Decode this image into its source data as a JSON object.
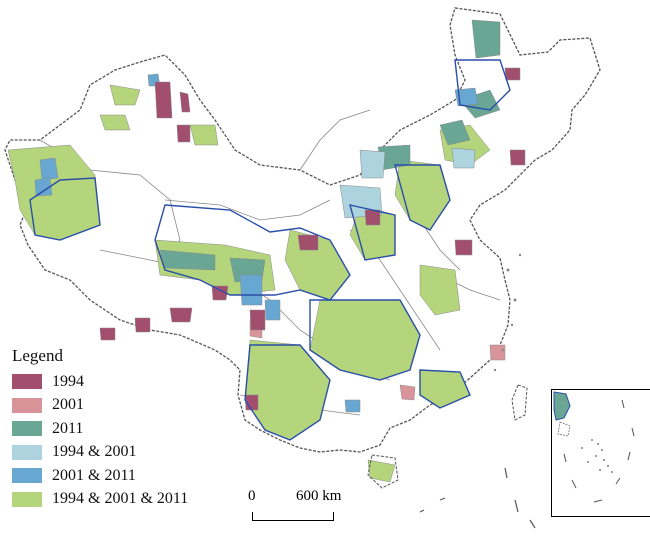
{
  "legend": {
    "title": "Legend",
    "items": [
      {
        "label": "1994",
        "color": "#a24f6e"
      },
      {
        "label": "2001",
        "color": "#d9949a"
      },
      {
        "label": "2011",
        "color": "#6aa694"
      },
      {
        "label": "1994 & 2001",
        "color": "#add3df"
      },
      {
        "label": "2001 & 2011",
        "color": "#67a7d1"
      },
      {
        "label": "1994 & 2001 & 2011",
        "color": "#b4d57c"
      }
    ]
  },
  "scale": {
    "start_label": "0",
    "end_label": "600 km"
  },
  "colors": {
    "outline": "#555555",
    "province_border": "#888888",
    "highlight_border": "#2a4fa8"
  }
}
